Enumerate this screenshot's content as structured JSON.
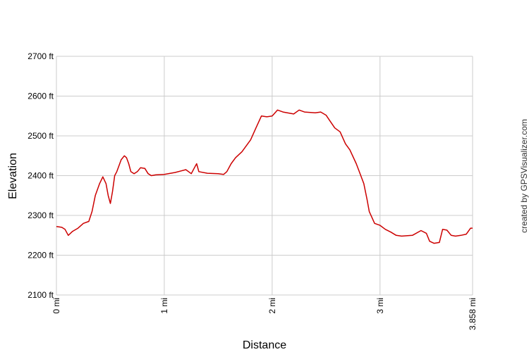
{
  "chart_data": {
    "type": "line",
    "xlabel": "Distance",
    "ylabel": "Elevation",
    "xlim": [
      0,
      3.858
    ],
    "ylim": [
      2100,
      2700
    ],
    "grid": true,
    "line_color": "#cc0000",
    "grid_color": "#cccccc",
    "x_ticks": [
      {
        "value": 0,
        "label": "0 mi"
      },
      {
        "value": 1,
        "label": "1 mi"
      },
      {
        "value": 2,
        "label": "2 mi"
      },
      {
        "value": 3,
        "label": "3 mi"
      },
      {
        "value": 3.858,
        "label": "3.858 mi"
      }
    ],
    "y_ticks": [
      {
        "value": 2100,
        "label": "2100 ft"
      },
      {
        "value": 2200,
        "label": "2200 ft"
      },
      {
        "value": 2300,
        "label": "2300 ft"
      },
      {
        "value": 2400,
        "label": "2400 ft"
      },
      {
        "value": 2500,
        "label": "2500 ft"
      },
      {
        "value": 2600,
        "label": "2600 ft"
      },
      {
        "value": 2700,
        "label": "2700 ft"
      }
    ],
    "series": [
      {
        "x": [
          0,
          0.05,
          0.08,
          0.11,
          0.15,
          0.2,
          0.25,
          0.3,
          0.33,
          0.36,
          0.4,
          0.43,
          0.46,
          0.48,
          0.5,
          0.52,
          0.54,
          0.56,
          0.58,
          0.6,
          0.63,
          0.65,
          0.67,
          0.69,
          0.72,
          0.75,
          0.78,
          0.82,
          0.85,
          0.88,
          0.92,
          1.0,
          1.1,
          1.2,
          1.25,
          1.28,
          1.3,
          1.32,
          1.4,
          1.5,
          1.55,
          1.58,
          1.62,
          1.66,
          1.72,
          1.8,
          1.85,
          1.9,
          1.95,
          2.0,
          2.05,
          2.1,
          2.2,
          2.25,
          2.3,
          2.4,
          2.45,
          2.5,
          2.53,
          2.58,
          2.63,
          2.68,
          2.72,
          2.78,
          2.85,
          2.88,
          2.9,
          2.95,
          3.0,
          3.05,
          3.1,
          3.15,
          3.2,
          3.3,
          3.38,
          3.43,
          3.46,
          3.5,
          3.55,
          3.58,
          3.62,
          3.66,
          3.7,
          3.75,
          3.8,
          3.84,
          3.858
        ],
        "y": [
          2272,
          2270,
          2265,
          2250,
          2260,
          2268,
          2280,
          2285,
          2310,
          2350,
          2380,
          2397,
          2380,
          2350,
          2330,
          2360,
          2400,
          2410,
          2425,
          2440,
          2450,
          2445,
          2430,
          2410,
          2405,
          2410,
          2420,
          2418,
          2405,
          2400,
          2402,
          2403,
          2408,
          2415,
          2405,
          2420,
          2430,
          2410,
          2406,
          2405,
          2403,
          2410,
          2430,
          2445,
          2460,
          2490,
          2520,
          2550,
          2548,
          2550,
          2565,
          2560,
          2555,
          2565,
          2560,
          2558,
          2560,
          2552,
          2540,
          2520,
          2510,
          2480,
          2465,
          2430,
          2380,
          2340,
          2310,
          2280,
          2275,
          2265,
          2258,
          2250,
          2248,
          2250,
          2262,
          2255,
          2235,
          2230,
          2232,
          2265,
          2263,
          2250,
          2248,
          2250,
          2253,
          2268,
          2268
        ]
      }
    ]
  },
  "credit": "created by GPSVisualizer.com"
}
